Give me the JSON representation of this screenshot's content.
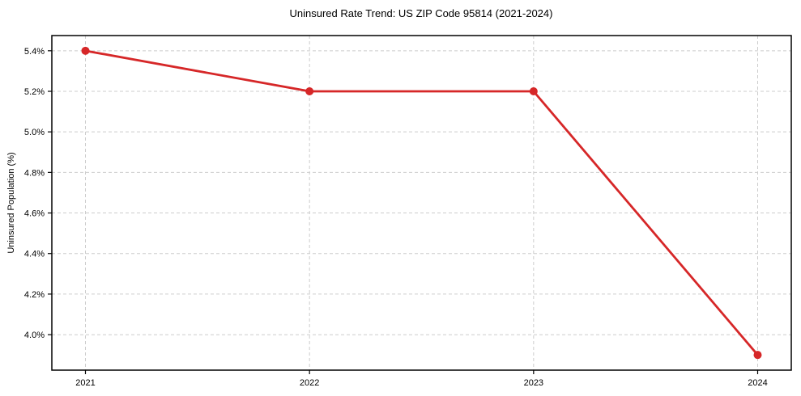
{
  "figure": {
    "background": "#ffffff"
  },
  "chart_data": {
    "type": "line",
    "title": "Uninsured Rate Trend: US ZIP Code 95814 (2021-2024)",
    "xlabel": "",
    "ylabel": "Uninsured Population (%)",
    "x": [
      2021,
      2022,
      2023,
      2024
    ],
    "values": [
      5.4,
      5.2,
      5.2,
      3.9
    ],
    "xticks": [
      2021,
      2022,
      2023,
      2024
    ],
    "xtick_labels": [
      "2021",
      "2022",
      "2023",
      "2024"
    ],
    "yticks": [
      4.0,
      4.2,
      4.4,
      4.6,
      4.8,
      5.0,
      5.2,
      5.4
    ],
    "ytick_labels": [
      "4.0%",
      "4.2%",
      "4.4%",
      "4.6%",
      "4.8%",
      "5.0%",
      "5.2%",
      "5.4%"
    ],
    "xlim": [
      2020.85,
      2024.15
    ],
    "ylim": [
      3.825,
      5.475
    ],
    "grid": true,
    "legend": false,
    "line_color": "#d62728",
    "marker": "circle",
    "marker_color": "#d62728",
    "grid_color": "#cccccc",
    "axis_color": "#000000",
    "text_color": "#000000"
  }
}
